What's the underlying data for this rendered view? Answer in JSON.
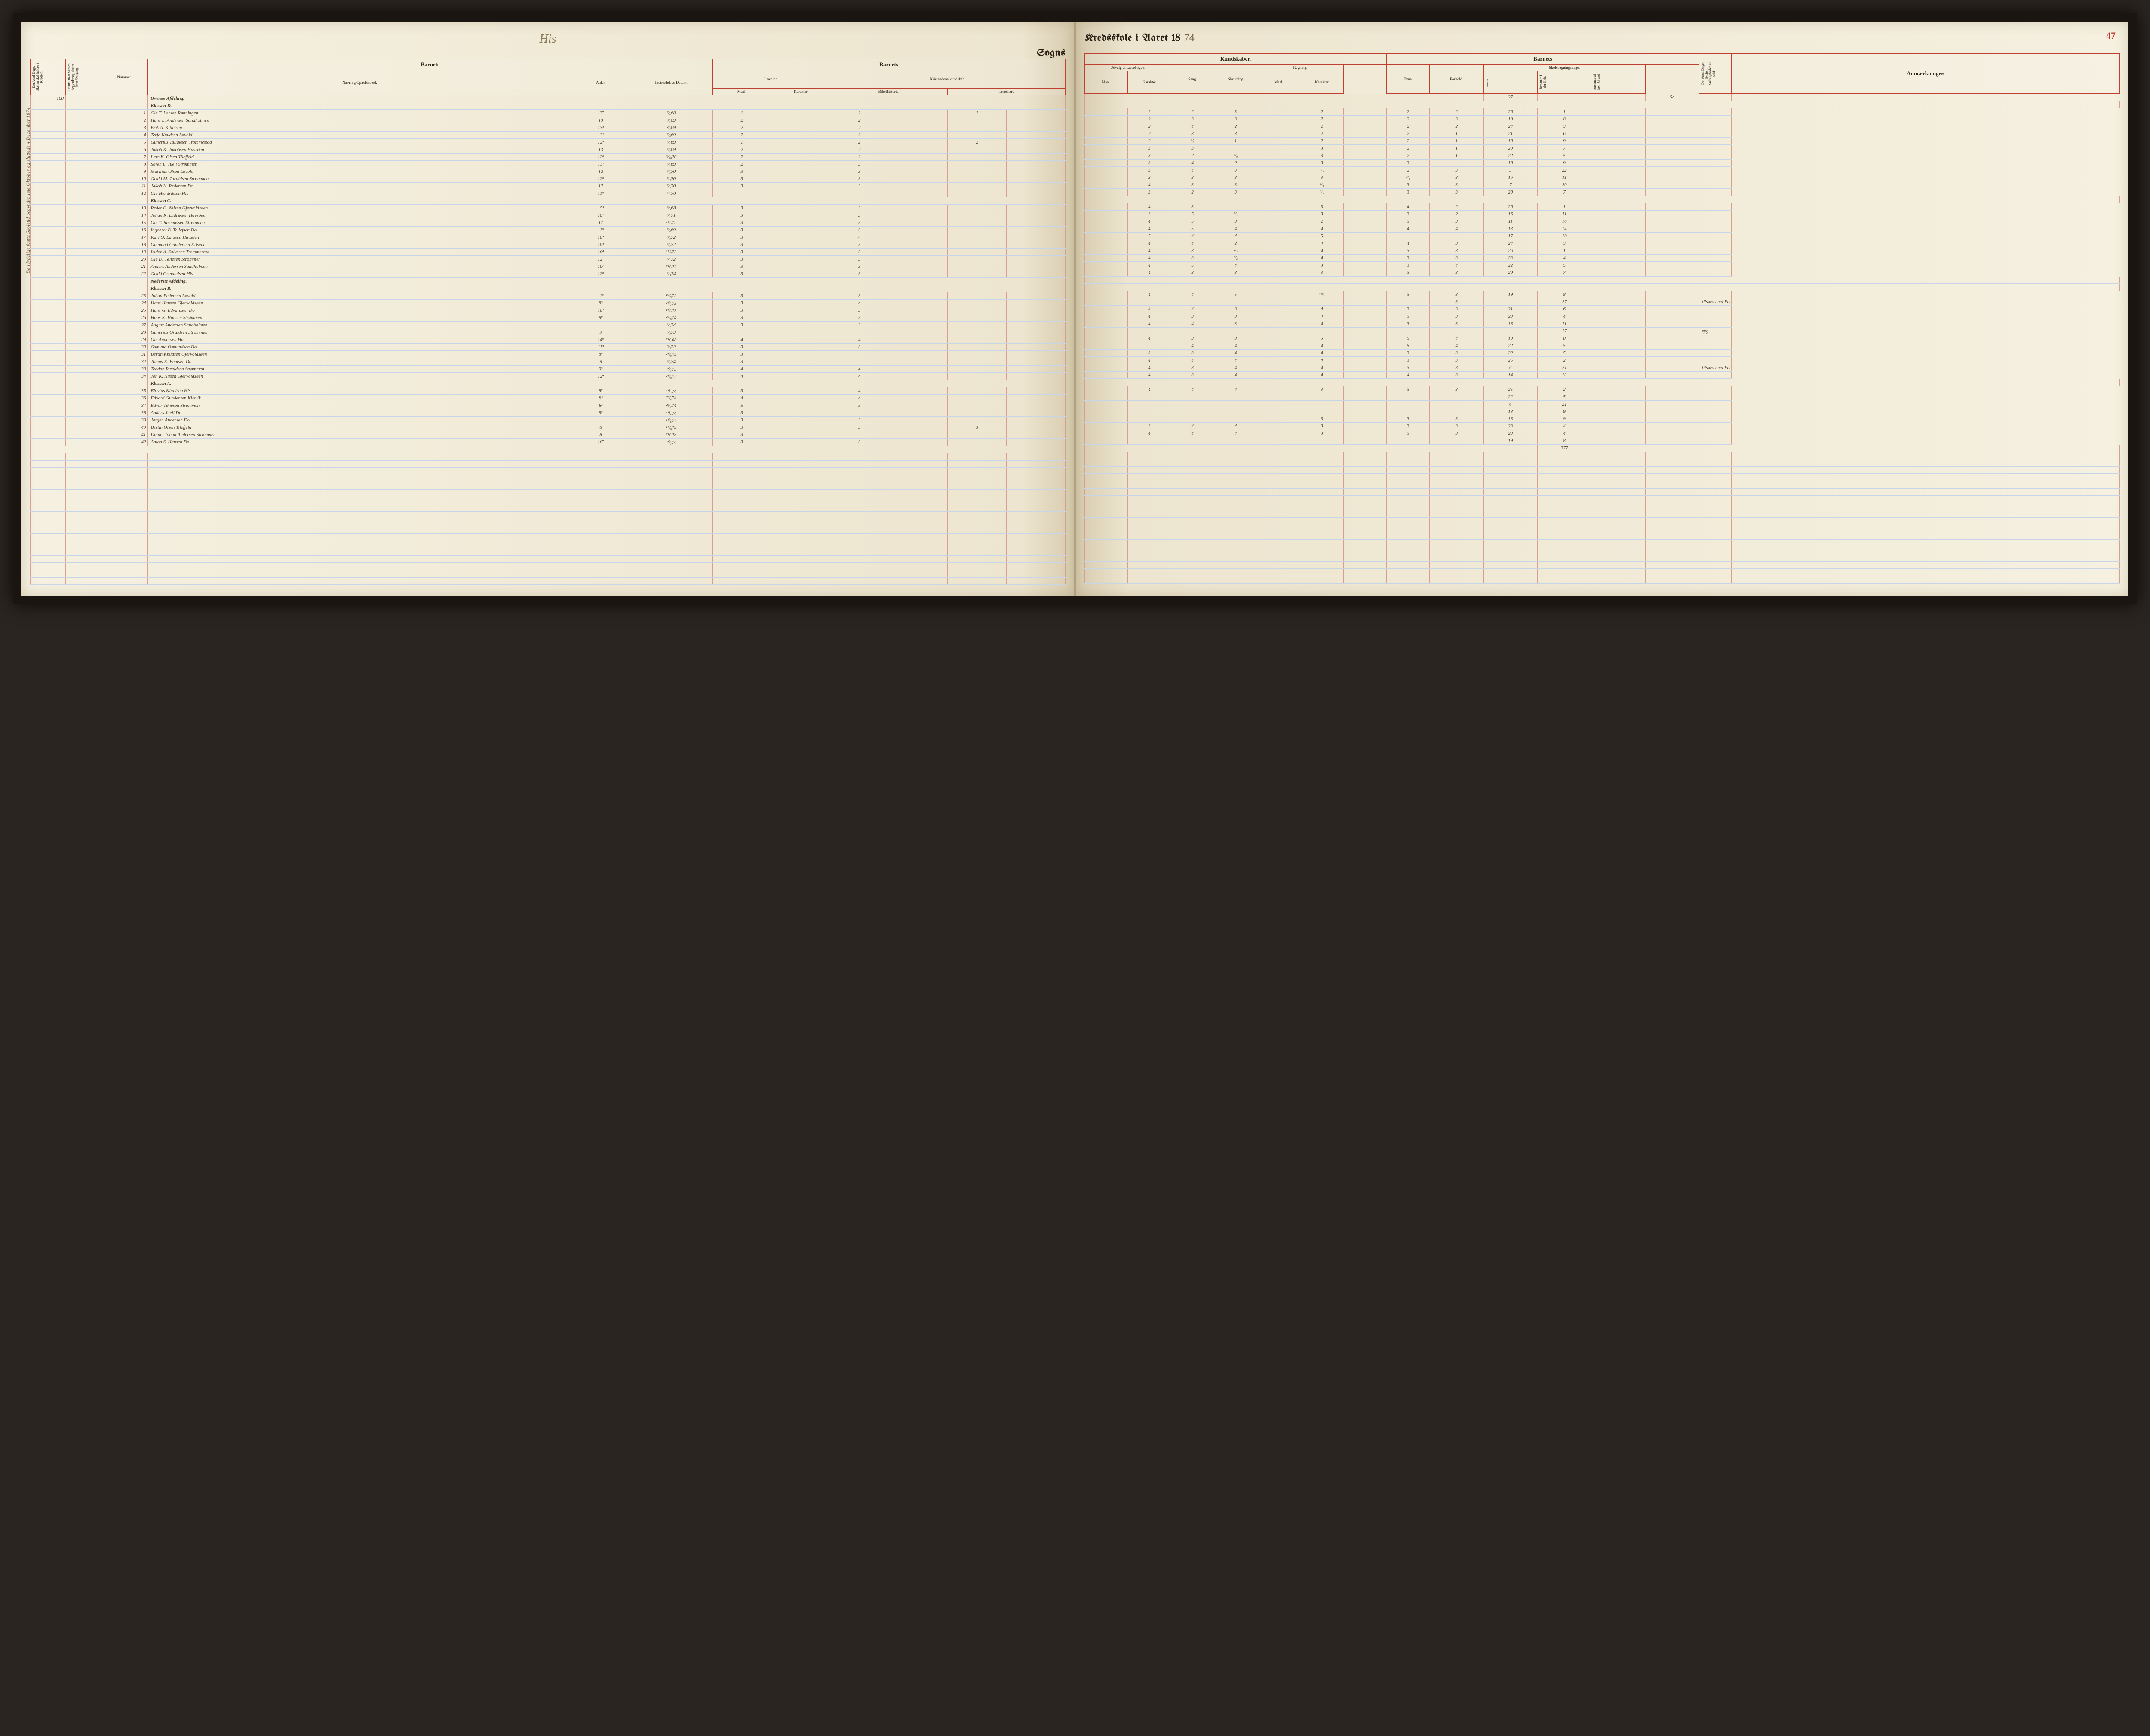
{
  "page_number_right": "47",
  "header": {
    "parish_script": "His",
    "sogns": "Sogns",
    "kredsskole": "Kredsskole i Aaret 18",
    "year_suffix": "74"
  },
  "colors": {
    "paper": "#f5f0e0",
    "rule_red": "#c04030",
    "rule_blue": "#c8d4e8",
    "ink": "#4a3a2a",
    "page_num": "#c0392b"
  },
  "column_groups_left": {
    "vertical1": "Det Antal Dage, Skolen skal holdes i Kredsen.",
    "vertical2": "Datum, naar Skolen begynder og slutter hver Omgang.",
    "nummer": "Nummer.",
    "barnets": "Barnets",
    "navn": "Navn og Opholdssted.",
    "alder": "Alder.",
    "indtr": "Indtrædelses-Datum.",
    "barnets2": "Barnets",
    "laesning": "Læsning.",
    "kristendom": "Kristendomskundskab.",
    "bibel": "Bibelhistorie.",
    "troes": "Troeslære",
    "maal": "Maal.",
    "karakter": "Karakter"
  },
  "column_groups_right": {
    "kundskaber": "Kundskaber.",
    "udvalg": "Udvalg af Læsebogen.",
    "sang": "Sang.",
    "skrivning": "Skrivning",
    "regning": "Regning.",
    "barnets": "Barnets",
    "evne": "Evne.",
    "forhold": "Forhold.",
    "skolesog": "Skolesøgningsdage.",
    "modte": "mødte.",
    "forsomte_hele": "forsømte i det Hele.",
    "forsomte_lov": "forsømte af lovl. Grund",
    "vertical_end": "Det Antal Dage, Skolen i Virkeligheden er holdt.",
    "anmerk": "Anmærkninger."
  },
  "top_values": {
    "days": "108",
    "modte_total": "27",
    "end_total": "54"
  },
  "sections": [
    {
      "label": "Øverste Afdeling.",
      "sublabel": "Klassen D."
    },
    {
      "label": "Klassen C.",
      "at_row": 12
    },
    {
      "label": "Nederste Afdeling.",
      "sublabel": "Klassen B.",
      "at_row": 22
    },
    {
      "label": "Klassen A.",
      "at_row": 34
    }
  ],
  "rows": [
    {
      "n": "1",
      "name": "Ole T. Larsen Rønningen",
      "age": "13⁷",
      "date": "²⁄₆68",
      "l_m": "1",
      "l_k": "",
      "b_m": "2",
      "b_k": "",
      "t_m": "2",
      "u_m": "",
      "u_k": "2",
      "sa": "2",
      "sk": "3",
      "r_m": "",
      "r_k": "2",
      "ev": "2",
      "fo": "2",
      "mo": "26",
      "f1": "1",
      "f2": "",
      "anm": ""
    },
    {
      "n": "2",
      "name": "Hans L. Andersen Sandholmen",
      "age": "13",
      "date": "²⁄₆69",
      "l_m": "2",
      "l_k": "",
      "b_m": "2",
      "b_k": "",
      "t_m": "",
      "u_m": "",
      "u_k": "2",
      "sa": "3",
      "sk": "3",
      "r_m": "",
      "r_k": "2",
      "ev": "2",
      "fo": "3",
      "mo": "19",
      "f1": "8",
      "f2": "",
      "anm": ""
    },
    {
      "n": "3",
      "name": "Erik A. Kittelsen",
      "age": "13⁴",
      "date": "²⁄₆69",
      "l_m": "2",
      "l_k": "",
      "b_m": "2",
      "b_k": "",
      "t_m": "",
      "u_m": "",
      "u_k": "2",
      "sa": "4",
      "sk": "2",
      "r_m": "",
      "r_k": "2",
      "ev": "2",
      "fo": "2",
      "mo": "24",
      "f1": "3",
      "f2": "",
      "anm": ""
    },
    {
      "n": "4",
      "name": "Terje Knudsen Løvold",
      "age": "13¹",
      "date": "²⁄₆69",
      "l_m": "2",
      "l_k": "",
      "b_m": "2",
      "b_k": "",
      "t_m": "",
      "u_m": "",
      "u_k": "2",
      "sa": "3",
      "sk": "3",
      "r_m": "",
      "r_k": "2",
      "ev": "2",
      "fo": "1",
      "mo": "21",
      "f1": "6",
      "f2": "",
      "anm": ""
    },
    {
      "n": "5",
      "name": "Gunerius Tallaksen Trommestad",
      "age": "12⁹",
      "date": "²⁄₆69",
      "l_m": "1",
      "l_k": "",
      "b_m": "2",
      "b_k": "",
      "t_m": "2",
      "u_m": "",
      "u_k": "2",
      "sa": "½",
      "sk": "1",
      "r_m": "",
      "r_k": "2",
      "ev": "2",
      "fo": "1",
      "mo": "18",
      "f1": "9",
      "f2": "",
      "anm": ""
    },
    {
      "n": "6",
      "name": "Jakob K. Jakobsen Havsøen",
      "age": "13",
      "date": "³⁄₉69",
      "l_m": "2",
      "l_k": "",
      "b_m": "2",
      "b_k": "",
      "t_m": "",
      "u_m": "",
      "u_k": "3",
      "sa": "3",
      "sk": "",
      "r_m": "",
      "r_k": "3",
      "ev": "2",
      "fo": "1",
      "mo": "20",
      "f1": "7",
      "f2": "",
      "anm": ""
    },
    {
      "n": "7",
      "name": "Lars K. Olsen Tilefjeld",
      "age": "12⁶",
      "date": "⁶⁄₁₀70",
      "l_m": "2",
      "l_k": "",
      "b_m": "2",
      "b_k": "",
      "t_m": "",
      "u_m": "",
      "u_k": "3",
      "sa": "2",
      "sk": "⁴⁄₃",
      "r_m": "",
      "r_k": "3",
      "ev": "2",
      "fo": "1",
      "mo": "22",
      "f1": "5",
      "f2": "",
      "anm": ""
    },
    {
      "n": "8",
      "name": "Søren L. Juell Strømmen",
      "age": "13²",
      "date": "²⁄₆69",
      "l_m": "2",
      "l_k": "",
      "b_m": "3",
      "b_k": "",
      "t_m": "",
      "u_m": "",
      "u_k": "3",
      "sa": "4",
      "sk": "2",
      "r_m": "",
      "r_k": "3",
      "ev": "3",
      "fo": "",
      "mo": "18",
      "f1": "9",
      "f2": "",
      "anm": ""
    },
    {
      "n": "9",
      "name": "Marilius Olsen Løvold",
      "age": "12",
      "date": "³⁄₃70",
      "l_m": "3",
      "l_k": "",
      "b_m": "3",
      "b_k": "",
      "t_m": "",
      "u_m": "",
      "u_k": "3",
      "sa": "4",
      "sk": "3",
      "r_m": "",
      "r_k": "³⁄₃",
      "ev": "2",
      "fo": "3",
      "mo": "5",
      "f1": "22",
      "f2": "",
      "anm": ""
    },
    {
      "n": "10",
      "name": "Oruld M. Taraldsen Strømmen",
      "age": "12⁵",
      "date": "³⁄₃70",
      "l_m": "3",
      "l_k": "",
      "b_m": "3",
      "b_k": "",
      "t_m": "",
      "u_m": "",
      "u_k": "3",
      "sa": "3",
      "sk": "3",
      "r_m": "",
      "r_k": "3",
      "ev": "³⁄₄",
      "fo": "3",
      "mo": "16",
      "f1": "11",
      "f2": "",
      "anm": ""
    },
    {
      "n": "11",
      "name": "Jakob K. Pedersen   Do",
      "age": "17",
      "date": "²⁄₅70",
      "l_m": "3",
      "l_k": "",
      "b_m": "3",
      "b_k": "",
      "t_m": "",
      "u_m": "",
      "u_k": "4",
      "sa": "3",
      "sk": "3",
      "r_m": "",
      "r_k": "³⁄₃",
      "ev": "3",
      "fo": "3",
      "mo": "7",
      "f1": "20",
      "f2": "",
      "anm": ""
    },
    {
      "n": "12",
      "name": "Ole Hendriksen His",
      "age": "11⁹",
      "date": "⁴⁄₇70",
      "l_m": "",
      "l_k": "",
      "b_m": "",
      "b_k": "",
      "t_m": "",
      "u_m": "",
      "u_k": "3",
      "sa": "2",
      "sk": "3",
      "r_m": "",
      "r_k": "³⁄₃",
      "ev": "3",
      "fo": "3",
      "mo": "20",
      "f1": "7",
      "f2": "",
      "anm": ""
    },
    {
      "n": "13",
      "name": "Peder G. Nilsen Gjervoldsøen",
      "age": "15³",
      "date": "⁹⁄₉68",
      "l_m": "3",
      "l_k": "",
      "b_m": "3",
      "b_k": "",
      "t_m": "",
      "u_m": "",
      "u_k": "4",
      "sa": "3",
      "sk": "",
      "r_m": "",
      "r_k": "3",
      "ev": "4",
      "fo": "2",
      "mo": "26",
      "f1": "1",
      "f2": "",
      "anm": ""
    },
    {
      "n": "14",
      "name": "Johan K. Didriksen Havsøen",
      "age": "10⁷",
      "date": "³⁄₇71",
      "l_m": "3",
      "l_k": "",
      "b_m": "3",
      "b_k": "",
      "t_m": "",
      "u_m": "",
      "u_k": "3",
      "sa": "5",
      "sk": "²⁄₃",
      "r_m": "",
      "r_k": "3",
      "ev": "3",
      "fo": "2",
      "mo": "16",
      "f1": "11",
      "f2": "",
      "anm": ""
    },
    {
      "n": "15",
      "name": "Ole T. Rasmussen Strømmen",
      "age": "17",
      "date": "¹⁸⁄₄72",
      "l_m": "3",
      "l_k": "",
      "b_m": "3",
      "b_k": "",
      "t_m": "",
      "u_m": "",
      "u_k": "4",
      "sa": "5",
      "sk": "3",
      "r_m": "",
      "r_k": "2",
      "ev": "3",
      "fo": "3",
      "mo": "11",
      "f1": "16",
      "f2": "",
      "anm": ""
    },
    {
      "n": "16",
      "name": "Ingebret B. Tellefsen   Do",
      "age": "11⁹",
      "date": "²⁄₆69",
      "l_m": "3",
      "l_k": "",
      "b_m": "3",
      "b_k": "",
      "t_m": "",
      "u_m": "",
      "u_k": "4",
      "sa": "5",
      "sk": "4",
      "r_m": "",
      "r_k": "4",
      "ev": "4",
      "fo": "4",
      "mo": "13",
      "f1": "14",
      "f2": "",
      "anm": ""
    },
    {
      "n": "17",
      "name": "Karl O. Larssen Havsøen",
      "age": "10⁴",
      "date": "³⁄₉72",
      "l_m": "3",
      "l_k": "",
      "b_m": "4",
      "b_k": "",
      "t_m": "",
      "u_m": "",
      "u_k": "5",
      "sa": "4",
      "sk": "4",
      "r_m": "",
      "r_k": "5",
      "ev": "",
      "fo": "",
      "mo": "17",
      "f1": "10",
      "f2": "",
      "anm": ""
    },
    {
      "n": "18",
      "name": "Ommund Gundersen Kilsvik",
      "age": "10⁴",
      "date": "³⁄₉72",
      "l_m": "3",
      "l_k": "",
      "b_m": "3",
      "b_k": "",
      "t_m": "",
      "u_m": "",
      "u_k": "4",
      "sa": "4",
      "sk": "2",
      "r_m": "",
      "r_k": "4",
      "ev": "4",
      "fo": "3",
      "mo": "24",
      "f1": "3",
      "f2": "",
      "anm": ""
    },
    {
      "n": "19",
      "name": "Isidor A. Salvesen Trommestad",
      "age": "10⁴",
      "date": "¹⁷⁄₂72",
      "l_m": "3",
      "l_k": "",
      "b_m": "3",
      "b_k": "",
      "t_m": "",
      "u_m": "",
      "u_k": "4",
      "sa": "3",
      "sk": "²⁄₄",
      "r_m": "",
      "r_k": "4",
      "ev": "3",
      "fo": "3",
      "mo": "26",
      "f1": "1",
      "f2": "",
      "anm": ""
    },
    {
      "n": "20",
      "name": "Ole D. Tønesen Strømmen",
      "age": "12⁷",
      "date": "¹⁄₁72",
      "l_m": "3",
      "l_k": "",
      "b_m": "3",
      "b_k": "",
      "t_m": "",
      "u_m": "",
      "u_k": "4",
      "sa": "3",
      "sk": "³⁄₄",
      "r_m": "",
      "r_k": "4",
      "ev": "3",
      "fo": "3",
      "mo": "23",
      "f1": "4",
      "f2": "",
      "anm": ""
    },
    {
      "n": "21",
      "name": "Anders Andersen Sandholmen",
      "age": "10⁷",
      "date": "²⁰⁄₁72",
      "l_m": "3",
      "l_k": "",
      "b_m": "3",
      "b_k": "",
      "t_m": "",
      "u_m": "",
      "u_k": "4",
      "sa": "5",
      "sk": "4",
      "r_m": "",
      "r_k": "3",
      "ev": "3",
      "fo": "4",
      "mo": "22",
      "f1": "5",
      "f2": "",
      "anm": ""
    },
    {
      "n": "22",
      "name": "Oruld Osmundsen His",
      "age": "12⁸",
      "date": "⁹⁄₉74",
      "l_m": "3",
      "l_k": "",
      "b_m": "3",
      "b_k": "",
      "t_m": "",
      "u_m": "",
      "u_k": "4",
      "sa": "3",
      "sk": "3",
      "r_m": "",
      "r_k": "3",
      "ev": "3",
      "fo": "3",
      "mo": "20",
      "f1": "7",
      "f2": "",
      "anm": ""
    },
    {
      "n": "23",
      "name": "Johan Pedersen Løvold",
      "age": "11⁶",
      "date": "²⁴⁄₅72",
      "l_m": "3",
      "l_k": "",
      "b_m": "3",
      "b_k": "",
      "t_m": "",
      "u_m": "",
      "u_k": "4",
      "sa": "4",
      "sk": "5",
      "r_m": "",
      "r_k": "¹⁰⁄₃",
      "ev": "3",
      "fo": "3",
      "mo": "19",
      "f1": "8",
      "f2": "",
      "anm": ""
    },
    {
      "n": "24",
      "name": "Hans Hansen Gjervoldsøen",
      "age": "8⁹",
      "date": "²⁰⁄₇73",
      "l_m": "3",
      "l_k": "",
      "b_m": "4",
      "b_k": "",
      "t_m": "",
      "u_m": "",
      "u_k": "",
      "sa": "",
      "sk": "",
      "r_m": "",
      "r_k": "",
      "ev": "",
      "fo": "3",
      "mo": "",
      "f1": "27",
      "f2": "",
      "anm": "tilsøes med Faderen."
    },
    {
      "n": "25",
      "name": "Hans G. Edvardsen   Do",
      "age": "10³",
      "date": "²⁰⁄₁73",
      "l_m": "3",
      "l_k": "",
      "b_m": "3",
      "b_k": "",
      "t_m": "",
      "u_m": "",
      "u_k": "4",
      "sa": "4",
      "sk": "3",
      "r_m": "",
      "r_k": "4",
      "ev": "3",
      "fo": "3",
      "mo": "21",
      "f1": "6",
      "f2": "",
      "anm": ""
    },
    {
      "n": "26",
      "name": "Hans K. Hansen Strømmen",
      "age": "8⁹",
      "date": "²⁴⁄₉74",
      "l_m": "3",
      "l_k": "",
      "b_m": "3",
      "b_k": "",
      "t_m": "",
      "u_m": "",
      "u_k": "4",
      "sa": "3",
      "sk": "3",
      "r_m": "",
      "r_k": "4",
      "ev": "3",
      "fo": "3",
      "mo": "23",
      "f1": "4",
      "f2": "",
      "anm": ""
    },
    {
      "n": "27",
      "name": "August Andersen Sandholmen",
      "age": "",
      "date": "¹⁄₉74",
      "l_m": "3",
      "l_k": "",
      "b_m": "3",
      "b_k": "",
      "t_m": "",
      "u_m": "",
      "u_k": "4",
      "sa": "4",
      "sk": "3",
      "r_m": "",
      "r_k": "4",
      "ev": "3",
      "fo": "3",
      "mo": "18",
      "f1": "11",
      "f2": "",
      "anm": ""
    },
    {
      "n": "28",
      "name": "Gunerius Oruldsen Strømmen",
      "age": "9",
      "date": "¹⁄₉73",
      "l_m": "",
      "l_k": "",
      "b_m": "",
      "b_k": "",
      "t_m": "",
      "u_m": "",
      "u_k": "",
      "sa": "",
      "sk": "",
      "r_m": "",
      "r_k": "",
      "ev": "",
      "fo": "",
      "mo": "",
      "f1": "27",
      "f2": "",
      "anm": "syg"
    },
    {
      "n": "29",
      "name": "Ole Andersen His",
      "age": "14⁹",
      "date": "²⁰⁄₇68",
      "l_m": "4",
      "l_k": "",
      "b_m": "4",
      "b_k": "",
      "t_m": "",
      "u_m": "",
      "u_k": "4",
      "sa": "3",
      "sk": "3",
      "r_m": "",
      "r_k": "5",
      "ev": "5",
      "fo": "4",
      "mo": "19",
      "f1": "8",
      "f2": "",
      "anm": ""
    },
    {
      "n": "30",
      "name": "Osmund Osmundsen   Do",
      "age": "11³",
      "date": "³⁄₃72",
      "l_m": "3",
      "l_k": "",
      "b_m": "3",
      "b_k": "",
      "t_m": "",
      "u_m": "",
      "u_k": "",
      "sa": "4",
      "sk": "4",
      "r_m": "",
      "r_k": "4",
      "ev": "5",
      "fo": "4",
      "mo": "22",
      "f1": "5",
      "f2": "",
      "anm": ""
    },
    {
      "n": "31",
      "name": "Bertin Knudsen Gjervoldsøen",
      "age": "8⁸",
      "date": "²⁰⁄₉74",
      "l_m": "3",
      "l_k": "",
      "b_m": "",
      "b_k": "",
      "t_m": "",
      "u_m": "",
      "u_k": "3",
      "sa": "3",
      "sk": "4",
      "r_m": "",
      "r_k": "4",
      "ev": "3",
      "fo": "3",
      "mo": "22",
      "f1": "5",
      "f2": "",
      "anm": ""
    },
    {
      "n": "32",
      "name": "Tomas K. Bentsen   Do",
      "age": "9",
      "date": "³⁄₉74",
      "l_m": "3",
      "l_k": "",
      "b_m": "",
      "b_k": "",
      "t_m": "",
      "u_m": "",
      "u_k": "4",
      "sa": "4",
      "sk": "4",
      "r_m": "",
      "r_k": "4",
      "ev": "3",
      "fo": "3",
      "mo": "25",
      "f1": "2",
      "f2": "",
      "anm": ""
    },
    {
      "n": "33",
      "name": "Teodor Taraldsen Strømmen",
      "age": "9⁹",
      "date": "²⁰⁄₇73",
      "l_m": "4",
      "l_k": "",
      "b_m": "4",
      "b_k": "",
      "t_m": "",
      "u_m": "",
      "u_k": "4",
      "sa": "3",
      "sk": "4",
      "r_m": "",
      "r_k": "4",
      "ev": "3",
      "fo": "3",
      "mo": "6",
      "f1": "21",
      "f2": "",
      "anm": "tilsøes med Faderen."
    },
    {
      "n": "34",
      "name": "Jon K. Nilsen Gjervoldsøen",
      "age": "12⁴",
      "date": "²⁰⁄₅72",
      "l_m": "4",
      "l_k": "",
      "b_m": "4",
      "b_k": "",
      "t_m": "",
      "u_m": "",
      "u_k": "4",
      "sa": "3",
      "sk": "4",
      "r_m": "",
      "r_k": "4",
      "ev": "4",
      "fo": "3",
      "mo": "14",
      "f1": "13",
      "f2": "",
      "anm": ""
    },
    {
      "n": "35",
      "name": "Elovius Kittelsen His",
      "age": "8⁷",
      "date": "²⁰⁄₁74",
      "l_m": "3",
      "l_k": "",
      "b_m": "4",
      "b_k": "",
      "t_m": "",
      "u_m": "",
      "u_k": "4",
      "sa": "4",
      "sk": "4",
      "r_m": "",
      "r_k": "3",
      "ev": "3",
      "fo": "3",
      "mo": "25",
      "f1": "2",
      "f2": "",
      "anm": ""
    },
    {
      "n": "36",
      "name": "Edvard Gundersen Kilsvik",
      "age": "8³",
      "date": "²³⁄₄74",
      "l_m": "4",
      "l_k": "",
      "b_m": "4",
      "b_k": "",
      "t_m": "",
      "u_m": "",
      "u_k": "",
      "sa": "",
      "sk": "",
      "r_m": "",
      "r_k": "",
      "ev": "",
      "fo": "",
      "mo": "22",
      "f1": "5",
      "f2": "",
      "anm": ""
    },
    {
      "n": "37",
      "name": "Edvar Tønesen Strømmen",
      "age": "8³",
      "date": "²³⁄₉74",
      "l_m": "5",
      "l_k": "",
      "b_m": "5",
      "b_k": "",
      "t_m": "",
      "u_m": "",
      "u_k": "",
      "sa": "",
      "sk": "",
      "r_m": "",
      "r_k": "",
      "ev": "",
      "fo": "",
      "mo": "6",
      "f1": "21",
      "f2": "",
      "anm": ""
    },
    {
      "n": "38",
      "name": "Anders Juell   Do",
      "age": "9⁹",
      "date": "¹⁰⁄₆74",
      "l_m": "3",
      "l_k": "",
      "b_m": "",
      "b_k": "",
      "t_m": "",
      "u_m": "",
      "u_k": "",
      "sa": "",
      "sk": "",
      "r_m": "",
      "r_k": "",
      "ev": "",
      "fo": "",
      "mo": "18",
      "f1": "9",
      "f2": "",
      "anm": ""
    },
    {
      "n": "39",
      "name": "Jørgen Andersen   Do",
      "age": "",
      "date": "¹⁰⁄₆74",
      "l_m": "3",
      "l_k": "",
      "b_m": "3",
      "b_k": "",
      "t_m": "",
      "u_m": "",
      "u_k": "",
      "sa": "",
      "sk": "",
      "r_m": "",
      "r_k": "3",
      "ev": "3",
      "fo": "3",
      "mo": "18",
      "f1": "9",
      "f2": "",
      "anm": ""
    },
    {
      "n": "40",
      "name": "Bertin Olsen Tilefjeld",
      "age": "8",
      "date": "¹⁰⁄₆74",
      "l_m": "3",
      "l_k": "",
      "b_m": "3",
      "b_k": "",
      "t_m": "3",
      "u_m": "",
      "u_k": "3",
      "sa": "4",
      "sk": "4",
      "r_m": "",
      "r_k": "3",
      "ev": "3",
      "fo": "3",
      "mo": "23",
      "f1": "4",
      "f2": "",
      "anm": ""
    },
    {
      "n": "41",
      "name": "Daniel Johan Andersen Strømmen",
      "age": "8",
      "date": "²⁰⁄₁74",
      "l_m": "3",
      "l_k": "",
      "b_m": "",
      "b_k": "",
      "t_m": "",
      "u_m": "",
      "u_k": "4",
      "sa": "4",
      "sk": "4",
      "r_m": "",
      "r_k": "3",
      "ev": "3",
      "fo": "3",
      "mo": "23",
      "f1": "4",
      "f2": "",
      "anm": ""
    },
    {
      "n": "42",
      "name": "Anton S. Hansen   Do",
      "age": "10⁷",
      "date": "²⁰⁄₇74",
      "l_m": "3",
      "l_k": "",
      "b_m": "3",
      "b_k": "",
      "t_m": "",
      "u_m": "",
      "u_k": "",
      "sa": "",
      "sk": "",
      "r_m": "",
      "r_k": "",
      "ev": "",
      "fo": "",
      "mo": "19",
      "f1": "8",
      "f2": "",
      "anm": ""
    }
  ],
  "footer_total": "377",
  "margin_note": "Den lydelige fastte Skoletid begyndte 1ste Oktober og sluttede 4 December 1874"
}
